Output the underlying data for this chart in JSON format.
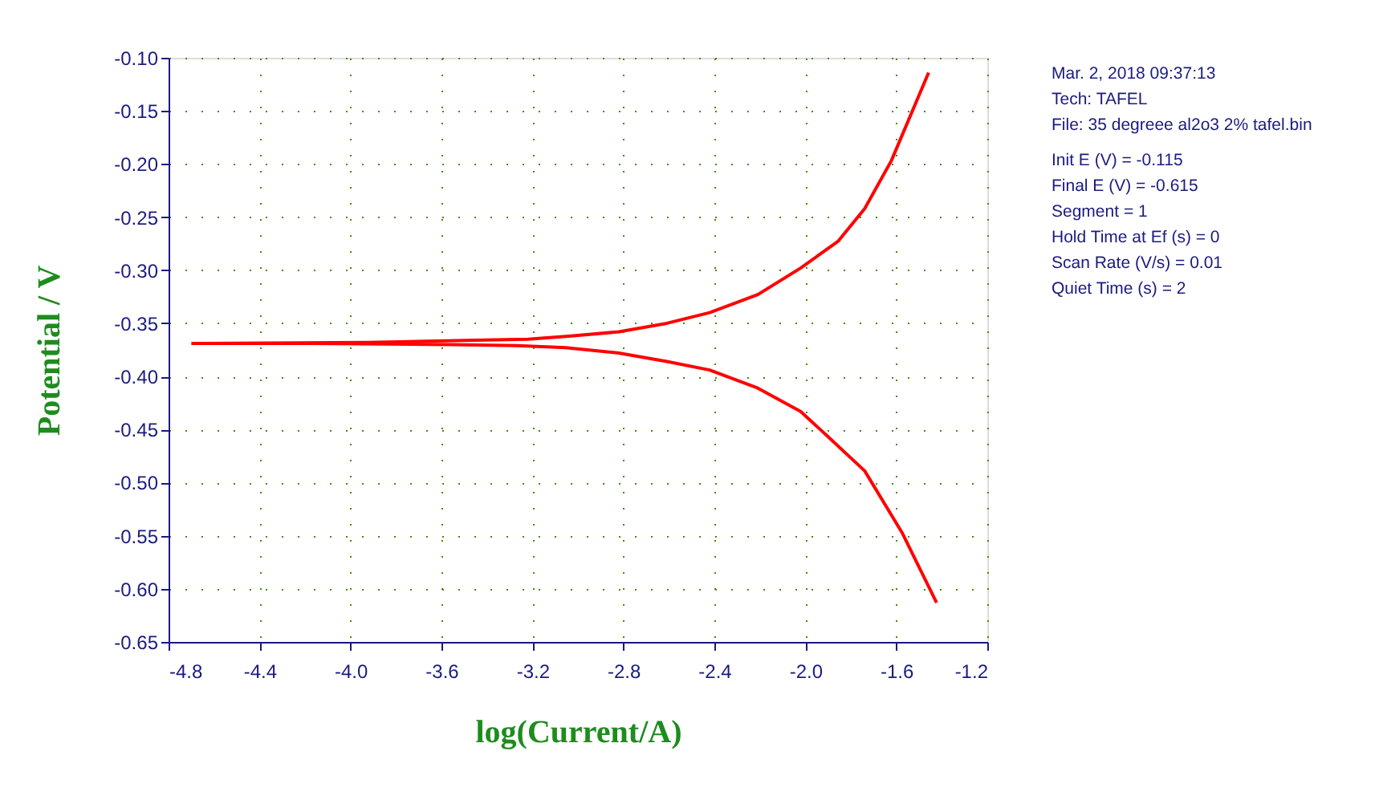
{
  "chart_data": {
    "type": "line",
    "xlabel": "log(Current/A)",
    "ylabel": "Potential / V",
    "annotations": [
      "Mar. 2, 2018   09:37:13",
      "Tech: TAFEL",
      "File: 35 degreee al2o3 2% tafel.bin",
      "Init E (V) = -0.115",
      "Final E (V) = -0.615",
      "Segment = 1",
      "Hold Time at Ef (s) = 0",
      "Scan Rate (V/s) = 0.01",
      "Quiet Time (s) = 2"
    ],
    "xlim": [
      -4.8,
      -1.2
    ],
    "ylim": [
      -0.65,
      -0.1
    ],
    "xticks": [
      {
        "value": -4.8,
        "label": "-4.8"
      },
      {
        "value": -4.4,
        "label": "-4.4"
      },
      {
        "value": -4.0,
        "label": "-4.0"
      },
      {
        "value": -3.6,
        "label": "-3.6"
      },
      {
        "value": -3.2,
        "label": "-3.2"
      },
      {
        "value": -2.8,
        "label": "-2.8"
      },
      {
        "value": -2.4,
        "label": "-2.4"
      },
      {
        "value": -2.0,
        "label": "-2.0"
      },
      {
        "value": -1.6,
        "label": "-1.6"
      },
      {
        "value": -1.2,
        "label": "-1.2"
      }
    ],
    "yticks": [
      {
        "value": -0.65,
        "label": "-0.65"
      },
      {
        "value": -0.6,
        "label": "-0.60"
      },
      {
        "value": -0.55,
        "label": "-0.55"
      },
      {
        "value": -0.5,
        "label": "-0.50"
      },
      {
        "value": -0.45,
        "label": "-0.45"
      },
      {
        "value": -0.4,
        "label": "-0.40"
      },
      {
        "value": -0.35,
        "label": "-0.35"
      },
      {
        "value": -0.3,
        "label": "-0.30"
      },
      {
        "value": -0.25,
        "label": "-0.25"
      },
      {
        "value": -0.2,
        "label": "-0.20"
      },
      {
        "value": -0.15,
        "label": "-0.15"
      },
      {
        "value": -0.1,
        "label": "-0.10"
      }
    ],
    "grid": true,
    "marker": "none",
    "line_style": "solid",
    "legend": false,
    "series": [
      {
        "color": "#ff0000",
        "x": [
          -4.699,
          -3.924,
          -3.454,
          -3.219,
          -3.031,
          -2.82,
          -2.609,
          -2.421,
          -2.209,
          -2.021,
          -1.857,
          -1.739,
          -1.622,
          -1.458
        ],
        "values": [
          -0.369,
          -0.368,
          -0.366,
          -0.365,
          -0.362,
          -0.358,
          -0.35,
          -0.34,
          -0.323,
          -0.298,
          -0.273,
          -0.242,
          -0.197,
          -0.114
        ]
      },
      {
        "color": "#ff0000",
        "x": [
          -4.699,
          -4.159,
          -3.548,
          -3.266,
          -3.055,
          -2.82,
          -2.609,
          -2.421,
          -2.209,
          -2.021,
          -1.904,
          -1.739,
          -1.575,
          -1.423
        ],
        "values": [
          -0.369,
          -0.369,
          -0.37,
          -0.371,
          -0.373,
          -0.378,
          -0.386,
          -0.394,
          -0.411,
          -0.433,
          -0.456,
          -0.489,
          -0.547,
          -0.613
        ]
      }
    ]
  }
}
